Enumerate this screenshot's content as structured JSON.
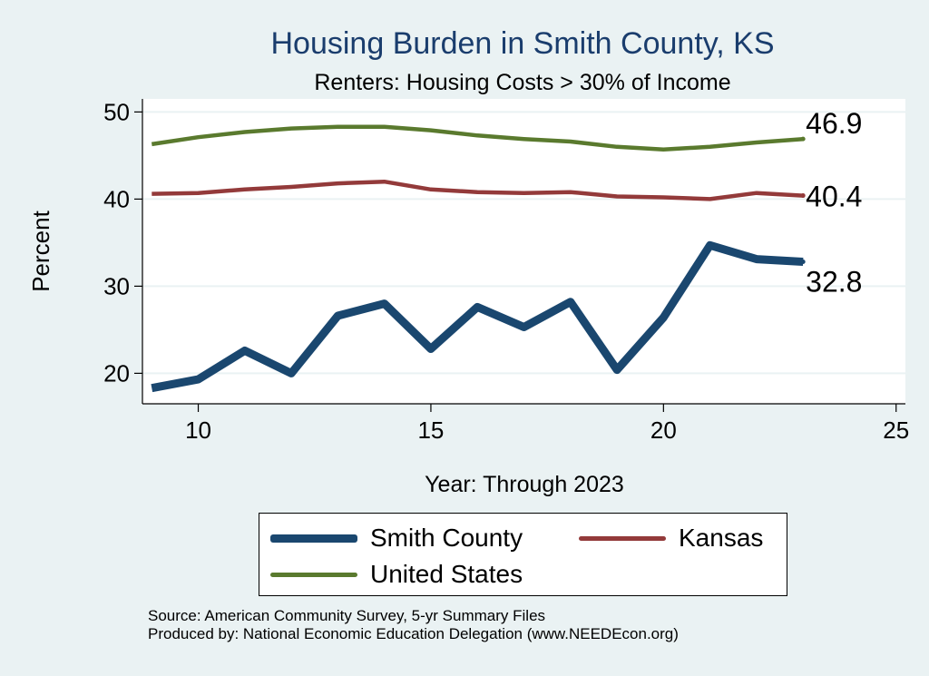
{
  "chart_data": {
    "type": "line",
    "title": "Housing Burden in Smith County, KS",
    "subtitle": "Renters: Housing Costs > 30% of Income",
    "xlabel": "Year: Through 2023",
    "ylabel": "Percent",
    "xlim": [
      8.8,
      25.2
    ],
    "ylim": [
      16.5,
      51.5
    ],
    "xticks": [
      10,
      15,
      20,
      25
    ],
    "yticks": [
      20,
      30,
      40,
      50
    ],
    "x": [
      9,
      10,
      11,
      12,
      13,
      14,
      15,
      16,
      17,
      18,
      19,
      20,
      21,
      22,
      23
    ],
    "series": [
      {
        "name": "United States",
        "color": "#5a7a2e",
        "values": [
          46.3,
          47.1,
          47.7,
          48.1,
          48.3,
          48.3,
          47.9,
          47.3,
          46.9,
          46.6,
          46.0,
          45.7,
          46.0,
          46.5,
          46.9
        ],
        "end_label": "46.9"
      },
      {
        "name": "Kansas",
        "color": "#933a3a",
        "values": [
          40.6,
          40.7,
          41.1,
          41.4,
          41.8,
          42.0,
          41.1,
          40.8,
          40.7,
          40.8,
          40.3,
          40.2,
          40.0,
          40.7,
          40.4
        ],
        "end_label": "40.4"
      },
      {
        "name": "Smith County",
        "color": "#1a476f",
        "values": [
          18.3,
          19.3,
          22.6,
          20.0,
          26.6,
          28.0,
          22.8,
          27.6,
          25.3,
          28.2,
          20.4,
          26.4,
          34.7,
          33.1,
          32.8
        ],
        "end_label": "32.8"
      }
    ],
    "legend": {
      "position": "bottom",
      "entries": [
        "Smith County",
        "Kansas",
        "United States"
      ]
    }
  },
  "source_lines": [
    "Source: American Community Survey, 5-yr Summary Files",
    "Produced by: National Economic Education Delegation (www.NEEDEcon.org)"
  ]
}
